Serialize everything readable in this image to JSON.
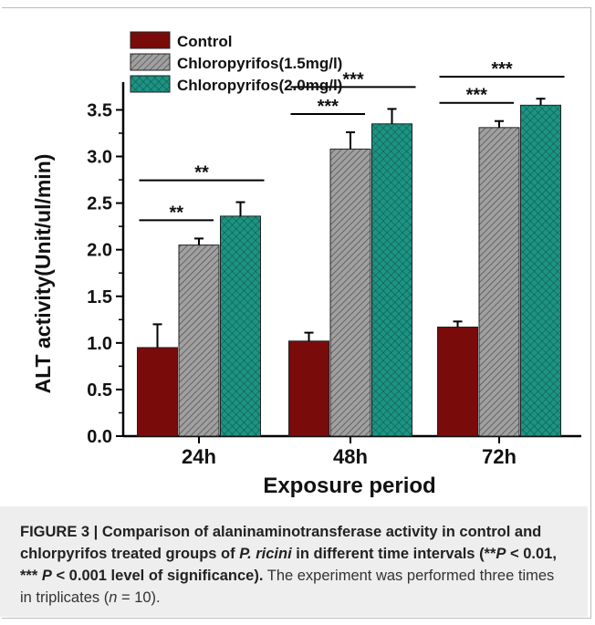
{
  "chart_data": {
    "type": "bar",
    "categories": [
      "24h",
      "48h",
      "72h"
    ],
    "series": [
      {
        "name": "Control",
        "values": [
          0.95,
          1.02,
          1.17
        ],
        "errors": [
          0.25,
          0.09,
          0.06
        ],
        "color": "#7a0b0b"
      },
      {
        "name": "Chloropyrifos(1.5mg/l)",
        "values": [
          2.05,
          3.08,
          3.31
        ],
        "errors": [
          0.07,
          0.18,
          0.07
        ],
        "color": "#9a9a9a",
        "pattern": "diagonal-hatch"
      },
      {
        "name": "Chloropyrifos(2.0mg/l)",
        "values": [
          2.36,
          3.35,
          3.55
        ],
        "errors": [
          0.15,
          0.16,
          0.07
        ],
        "color": "#1a8a7a",
        "pattern": "cross-hatch"
      }
    ],
    "xlabel": "Exposure period",
    "ylabel": "ALT activity(Unit/ul/min)",
    "ylim": [
      0,
      3.7
    ],
    "yticks": [
      "0.0",
      "0.5",
      "1.0",
      "1.5",
      "2.0",
      "2.5",
      "3.0",
      "3.5"
    ],
    "legend_position": "top-left",
    "grid": false,
    "annotations": [
      {
        "group": "24h",
        "from": "Control",
        "to": "Chloropyrifos(1.5mg/l)",
        "text": "**"
      },
      {
        "group": "24h",
        "from": "Control",
        "to": "Chloropyrifos(2.0mg/l)",
        "text": "**"
      },
      {
        "group": "48h",
        "from": "Control",
        "to": "Chloropyrifos(1.5mg/l)",
        "text": "***"
      },
      {
        "group": "48h",
        "from": "Control",
        "to": "Chloropyrifos(2.0mg/l)",
        "text": "***"
      },
      {
        "group": "72h",
        "from": "Control",
        "to": "Chloropyrifos(1.5mg/l)",
        "text": "***"
      },
      {
        "group": "72h",
        "from": "Control",
        "to": "Chloropyrifos(2.0mg/l)",
        "text": "***"
      }
    ]
  },
  "caption": {
    "label": "FIGURE 3 | Comparison of alaninaminotransferase activity in control and chlorpyrifos treated groups of ",
    "species": "P. ricini",
    "label_cont": " in different time intervals (**",
    "p1": "P",
    "p1_text": " < 0.01, *** ",
    "p2": "P",
    "p2_text": " < 0.001 level of significance).",
    "body": " The experiment was performed three times in triplicates (",
    "n_var": "n",
    "n_text": " = 10)."
  }
}
